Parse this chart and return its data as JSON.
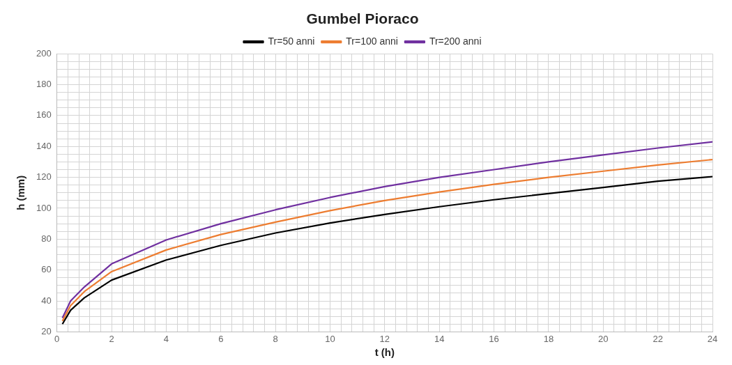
{
  "chart_data": {
    "type": "line",
    "title": "Gumbel Pioraco",
    "xlabel": "t (h)",
    "ylabel": "h (mm)",
    "x": [
      0.2,
      0.5,
      1,
      2,
      4,
      6,
      8,
      10,
      12,
      14,
      16,
      18,
      20,
      22,
      24
    ],
    "series": [
      {
        "name": "Tr=50 anni",
        "color": "#000000",
        "values": [
          25,
          34,
          42,
          53.5,
          66.5,
          76,
          84,
          90.5,
          96,
          101,
          105.5,
          109.5,
          113.5,
          117.5,
          120.5
        ]
      },
      {
        "name": "Tr=100 anni",
        "color": "#ed7d31",
        "values": [
          27,
          37,
          46,
          59,
          73,
          83,
          91,
          98.5,
          105,
          110.5,
          115.5,
          120,
          124,
          128,
          131.5
        ]
      },
      {
        "name": "Tr=200 anni",
        "color": "#7030a0",
        "values": [
          29,
          40,
          49,
          64,
          79.5,
          90,
          99,
          107,
          114,
          120,
          125,
          130,
          134.5,
          139,
          143
        ]
      }
    ],
    "xlim": [
      0,
      24
    ],
    "xticks": [
      0,
      {
        "value": 0.4,
        "label": null
      },
      {
        "value": 0.8,
        "label": null
      },
      {
        "value": 1.2,
        "label": null
      },
      {
        "value": 1.6,
        "label": null
      },
      2,
      {
        "value": 2.4,
        "label": null
      },
      {
        "value": 2.8,
        "label": null
      },
      {
        "value": 3.2,
        "label": null
      },
      {
        "value": 3.6,
        "label": null
      },
      4,
      {
        "value": 4.4,
        "label": null
      },
      {
        "value": 4.8,
        "label": null
      },
      {
        "value": 5.2,
        "label": null
      },
      {
        "value": 5.6,
        "label": null
      },
      6,
      {
        "value": 6.4,
        "label": null
      },
      {
        "value": 6.8,
        "label": null
      },
      {
        "value": 7.2,
        "label": null
      },
      {
        "value": 7.6,
        "label": null
      },
      8,
      {
        "value": 8.4,
        "label": null
      },
      {
        "value": 8.8,
        "label": null
      },
      {
        "value": 9.2,
        "label": null
      },
      {
        "value": 9.6,
        "label": null
      },
      10,
      {
        "value": 10.4,
        "label": null
      },
      {
        "value": 10.8,
        "label": null
      },
      {
        "value": 11.2,
        "label": null
      },
      {
        "value": 11.6,
        "label": null
      },
      12,
      {
        "value": 12.4,
        "label": null
      },
      {
        "value": 12.8,
        "label": null
      },
      {
        "value": 13.2,
        "label": null
      },
      {
        "value": 13.6,
        "label": null
      },
      14,
      {
        "value": 14.4,
        "label": null
      },
      {
        "value": 14.8,
        "label": null
      },
      {
        "value": 15.2,
        "label": null
      },
      {
        "value": 15.6,
        "label": null
      },
      16,
      {
        "value": 16.4,
        "label": null
      },
      {
        "value": 16.8,
        "label": null
      },
      {
        "value": 17.2,
        "label": null
      },
      {
        "value": 17.6,
        "label": null
      },
      18,
      {
        "value": 18.4,
        "label": null
      },
      {
        "value": 18.8,
        "label": null
      },
      {
        "value": 19.2,
        "label": null
      },
      {
        "value": 19.6,
        "label": null
      },
      20,
      {
        "value": 20.4,
        "label": null
      },
      {
        "value": 20.8,
        "label": null
      },
      {
        "value": 21.2,
        "label": null
      },
      {
        "value": 21.6,
        "label": null
      },
      22,
      {
        "value": 22.4,
        "label": null
      },
      {
        "value": 22.8,
        "label": null
      },
      {
        "value": 23.2,
        "label": null
      },
      {
        "value": 23.6,
        "label": null
      },
      24
    ],
    "ylim": [
      20,
      200
    ],
    "yticks": [
      20,
      {
        "value": 25,
        "label": null
      },
      {
        "value": 30,
        "label": null
      },
      {
        "value": 35,
        "label": null
      },
      40,
      {
        "value": 45,
        "label": null
      },
      {
        "value": 50,
        "label": null
      },
      {
        "value": 55,
        "label": null
      },
      60,
      {
        "value": 65,
        "label": null
      },
      {
        "value": 70,
        "label": null
      },
      {
        "value": 75,
        "label": null
      },
      80,
      {
        "value": 85,
        "label": null
      },
      {
        "value": 90,
        "label": null
      },
      {
        "value": 95,
        "label": null
      },
      100,
      {
        "value": 105,
        "label": null
      },
      {
        "value": 110,
        "label": null
      },
      {
        "value": 115,
        "label": null
      },
      120,
      {
        "value": 125,
        "label": null
      },
      {
        "value": 130,
        "label": null
      },
      {
        "value": 135,
        "label": null
      },
      140,
      {
        "value": 145,
        "label": null
      },
      {
        "value": 150,
        "label": null
      },
      {
        "value": 155,
        "label": null
      },
      160,
      {
        "value": 165,
        "label": null
      },
      {
        "value": 170,
        "label": null
      },
      {
        "value": 175,
        "label": null
      },
      180,
      {
        "value": 185,
        "label": null
      },
      {
        "value": 190,
        "label": null
      },
      {
        "value": 195,
        "label": null
      },
      200
    ],
    "grid": true,
    "legend": "top",
    "marker": "none",
    "line_style": "solid"
  }
}
